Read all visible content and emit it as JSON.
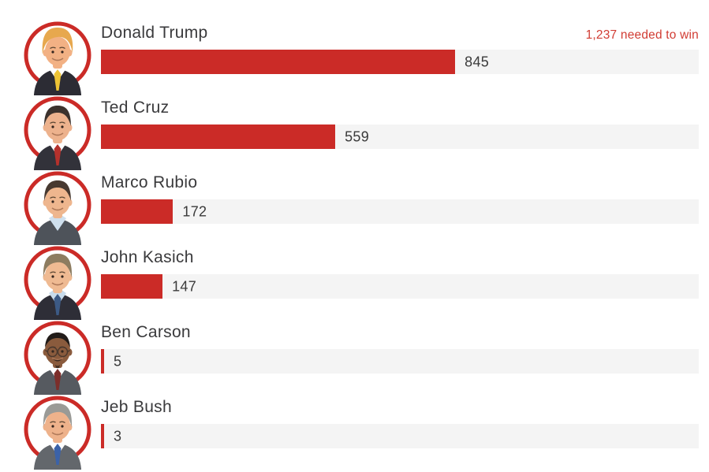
{
  "chart_data": {
    "type": "bar",
    "orientation": "horizontal",
    "title": "",
    "categories": [
      "Donald Trump",
      "Ted Cruz",
      "Marco Rubio",
      "John Kasich",
      "Ben Carson",
      "Jeb Bush"
    ],
    "values": [
      845,
      559,
      172,
      147,
      5,
      3
    ],
    "value_labels": [
      "845",
      "559",
      "172",
      "147",
      "5",
      "3"
    ],
    "annotation": "1,237 needed to win",
    "needed_to_win": 1237,
    "xlim": [
      0,
      1426
    ],
    "grid": false,
    "legend": "none"
  },
  "colors": {
    "background": "#ffffff",
    "bar": "#cb2b27",
    "track": "#f4f4f4",
    "annotation": "#d13c33",
    "name_text": "#3a3a3c",
    "value_text": "#3a3a3a",
    "ring": "#cb2b27"
  },
  "candidates": [
    {
      "name": "Donald Trump",
      "delegates": 845,
      "delegates_label": "845",
      "avatar": {
        "icon": "donald-trump-portrait-icon",
        "skin": "#f2b184",
        "hair": "#e7a84e",
        "hair_style": "swept",
        "suit": "#2c2c34",
        "shirt": "#ffffff",
        "tie": "#eec435",
        "glasses": false,
        "facial_hair": false
      }
    },
    {
      "name": "Ted Cruz",
      "delegates": 559,
      "delegates_label": "559",
      "avatar": {
        "icon": "ted-cruz-portrait-icon",
        "skin": "#edb28d",
        "hair": "#3c322d",
        "hair_style": "short",
        "suit": "#32323a",
        "shirt": "#ffffff",
        "tie": "#b5312c",
        "glasses": false,
        "facial_hair": false
      }
    },
    {
      "name": "Marco Rubio",
      "delegates": 172,
      "delegates_label": "172",
      "avatar": {
        "icon": "marco-rubio-portrait-icon",
        "skin": "#eeb68e",
        "hair": "#473930",
        "hair_style": "short",
        "suit": "#4e535a",
        "shirt": "#cfe0ee",
        "tie": "",
        "glasses": false,
        "facial_hair": false
      }
    },
    {
      "name": "John Kasich",
      "delegates": 147,
      "delegates_label": "147",
      "avatar": {
        "icon": "john-kasich-portrait-icon",
        "skin": "#efba92",
        "hair": "#8d7c60",
        "hair_style": "side",
        "suit": "#2e2e37",
        "shirt": "#c8dcec",
        "tie": "#3c5a85",
        "glasses": false,
        "facial_hair": false
      }
    },
    {
      "name": "Ben Carson",
      "delegates": 5,
      "delegates_label": "5",
      "avatar": {
        "icon": "ben-carson-portrait-icon",
        "skin": "#8a5b3d",
        "hair": "#221c19",
        "hair_style": "buzz",
        "suit": "#565a60",
        "shirt": "#ffffff",
        "tie": "#7c2e2a",
        "glasses": true,
        "facial_hair": true
      }
    },
    {
      "name": "Jeb Bush",
      "delegates": 3,
      "delegates_label": "3",
      "avatar": {
        "icon": "jeb-bush-portrait-icon",
        "skin": "#eeb28b",
        "hair": "#9a9a96",
        "hair_style": "side",
        "suit": "#63676c",
        "shirt": "#ffffff",
        "tie": "#3b62a8",
        "glasses": false,
        "facial_hair": false
      }
    }
  ]
}
